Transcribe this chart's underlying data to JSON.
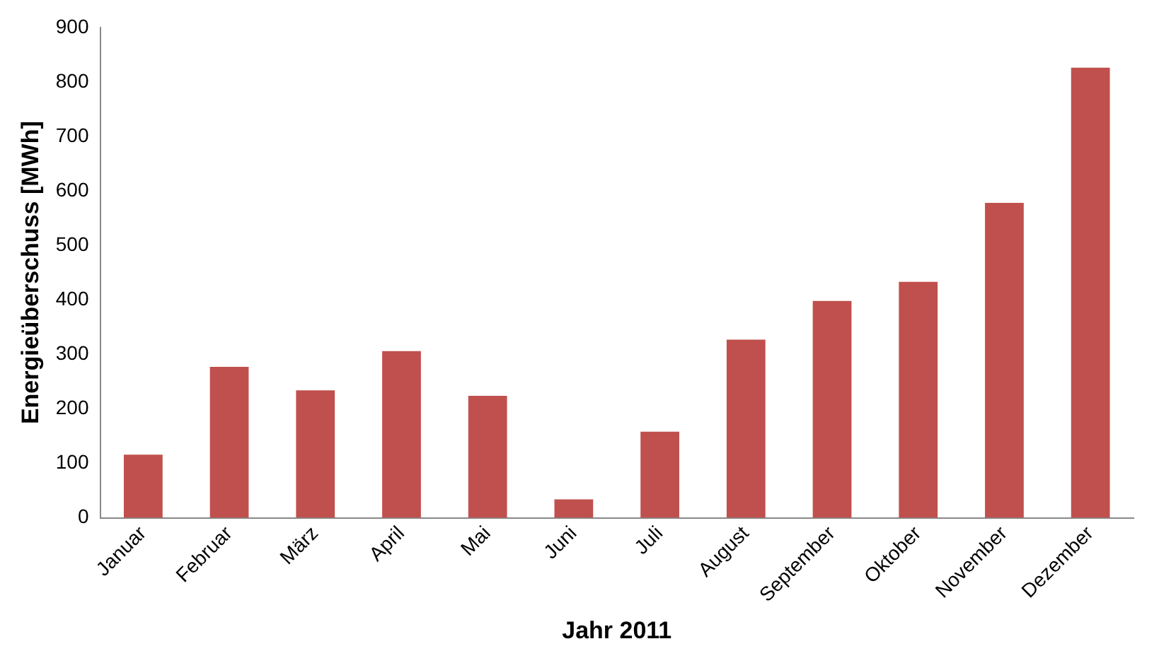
{
  "chart_data": {
    "type": "bar",
    "xlabel": "Jahr 2011",
    "ylabel": "Energieüberschuss [MWh]",
    "categories": [
      "Januar",
      "Februar",
      "März",
      "April",
      "Mai",
      "Juni",
      "Juli",
      "August",
      "September",
      "Oktober",
      "November",
      "Dezember"
    ],
    "values": [
      116,
      277,
      234,
      306,
      224,
      34,
      158,
      327,
      398,
      433,
      578,
      826
    ],
    "color": "#c0504d",
    "ylim": [
      0,
      900
    ],
    "yticks": [
      0,
      100,
      200,
      300,
      400,
      500,
      600,
      700,
      800,
      900
    ],
    "grid": false,
    "legend": false
  }
}
